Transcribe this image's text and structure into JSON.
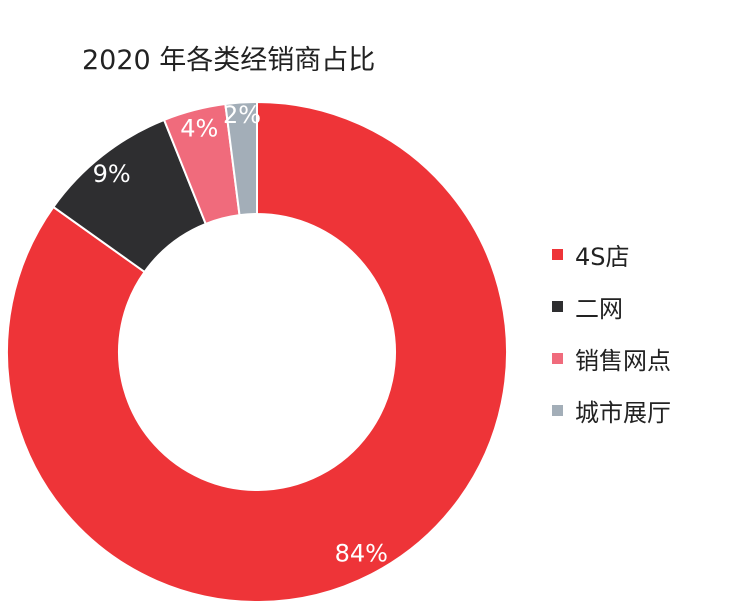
{
  "chart_data": {
    "type": "pie",
    "title": "2020 年各类经销商占比",
    "categories": [
      "4S店",
      "二网",
      "销售网点",
      "城市展厅"
    ],
    "values": [
      84,
      9,
      4,
      2
    ],
    "labels": [
      "84%",
      "9%",
      "4%",
      "2%"
    ],
    "colors": [
      "#ee3438",
      "#2e2e30",
      "#f06b7c",
      "#a3aeb8"
    ],
    "legend_position": "right"
  }
}
